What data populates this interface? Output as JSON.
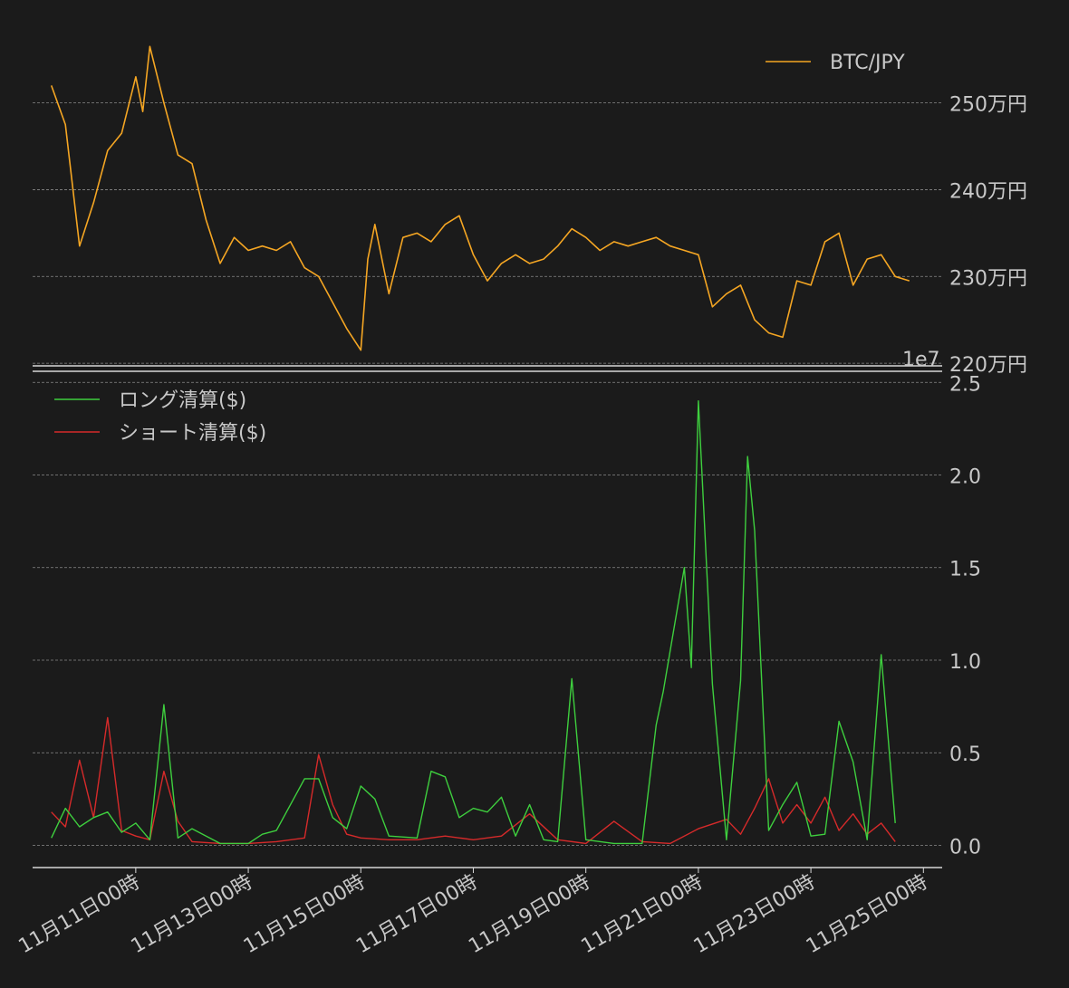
{
  "chart_data": [
    {
      "type": "line",
      "series": [
        {
          "name": "BTC/JPY",
          "color": "#f5a623",
          "points": [
            [
              "2024-11-09T12:00",
              2520000
            ],
            [
              "2024-11-09T18:00",
              2475000
            ],
            [
              "2024-11-10T00:00",
              2335000
            ],
            [
              "2024-11-10T06:00",
              2385000
            ],
            [
              "2024-11-10T12:00",
              2445000
            ],
            [
              "2024-11-10T18:00",
              2465000
            ],
            [
              "2024-11-11T00:00",
              2530000
            ],
            [
              "2024-11-11T03:00",
              2490000
            ],
            [
              "2024-11-11T06:00",
              2565000
            ],
            [
              "2024-11-11T12:00",
              2500000
            ],
            [
              "2024-11-11T18:00",
              2440000
            ],
            [
              "2024-11-12T00:00",
              2430000
            ],
            [
              "2024-11-12T06:00",
              2365000
            ],
            [
              "2024-11-12T12:00",
              2315000
            ],
            [
              "2024-11-12T18:00",
              2345000
            ],
            [
              "2024-11-13T00:00",
              2330000
            ],
            [
              "2024-11-13T06:00",
              2335000
            ],
            [
              "2024-11-13T12:00",
              2330000
            ],
            [
              "2024-11-13T18:00",
              2340000
            ],
            [
              "2024-11-14T00:00",
              2310000
            ],
            [
              "2024-11-14T06:00",
              2300000
            ],
            [
              "2024-11-14T12:00",
              2270000
            ],
            [
              "2024-11-14T18:00",
              2240000
            ],
            [
              "2024-11-15T00:00",
              2215000
            ],
            [
              "2024-11-15T03:00",
              2320000
            ],
            [
              "2024-11-15T06:00",
              2360000
            ],
            [
              "2024-11-15T12:00",
              2280000
            ],
            [
              "2024-11-15T18:00",
              2345000
            ],
            [
              "2024-11-16T00:00",
              2350000
            ],
            [
              "2024-11-16T06:00",
              2340000
            ],
            [
              "2024-11-16T12:00",
              2360000
            ],
            [
              "2024-11-16T18:00",
              2370000
            ],
            [
              "2024-11-17T00:00",
              2325000
            ],
            [
              "2024-11-17T06:00",
              2295000
            ],
            [
              "2024-11-17T12:00",
              2315000
            ],
            [
              "2024-11-17T18:00",
              2325000
            ],
            [
              "2024-11-18T00:00",
              2315000
            ],
            [
              "2024-11-18T06:00",
              2320000
            ],
            [
              "2024-11-18T12:00",
              2335000
            ],
            [
              "2024-11-18T18:00",
              2355000
            ],
            [
              "2024-11-19T00:00",
              2345000
            ],
            [
              "2024-11-19T06:00",
              2330000
            ],
            [
              "2024-11-19T12:00",
              2340000
            ],
            [
              "2024-11-19T18:00",
              2335000
            ],
            [
              "2024-11-20T00:00",
              2340000
            ],
            [
              "2024-11-20T06:00",
              2345000
            ],
            [
              "2024-11-20T12:00",
              2335000
            ],
            [
              "2024-11-20T18:00",
              2330000
            ],
            [
              "2024-11-21T00:00",
              2325000
            ],
            [
              "2024-11-21T06:00",
              2265000
            ],
            [
              "2024-11-21T12:00",
              2280000
            ],
            [
              "2024-11-21T18:00",
              2290000
            ],
            [
              "2024-11-22T00:00",
              2250000
            ],
            [
              "2024-11-22T06:00",
              2235000
            ],
            [
              "2024-11-22T12:00",
              2230000
            ],
            [
              "2024-11-22T18:00",
              2295000
            ],
            [
              "2024-11-23T00:00",
              2290000
            ],
            [
              "2024-11-23T06:00",
              2340000
            ],
            [
              "2024-11-23T12:00",
              2350000
            ],
            [
              "2024-11-23T18:00",
              2290000
            ],
            [
              "2024-11-24T00:00",
              2320000
            ],
            [
              "2024-11-24T06:00",
              2325000
            ],
            [
              "2024-11-24T12:00",
              2300000
            ],
            [
              "2024-11-24T18:00",
              2295000
            ]
          ]
        }
      ],
      "ylim": [
        2197000,
        2582000
      ],
      "yticks": [
        2200000,
        2300000,
        2400000,
        2500000
      ],
      "ytick_labels": [
        "220万円",
        "230万円",
        "240万円",
        "250万円"
      ],
      "grid": true,
      "legend": "top-right"
    },
    {
      "type": "line",
      "y_offset_label": "1e7",
      "series": [
        {
          "name": "ロング清算($)",
          "color": "#3ecf3e",
          "points": [
            [
              "2024-11-09T12:00",
              400000
            ],
            [
              "2024-11-09T18:00",
              2000000
            ],
            [
              "2024-11-10T00:00",
              1000000
            ],
            [
              "2024-11-10T06:00",
              1500000
            ],
            [
              "2024-11-10T12:00",
              1800000
            ],
            [
              "2024-11-10T18:00",
              700000
            ],
            [
              "2024-11-11T00:00",
              1200000
            ],
            [
              "2024-11-11T06:00",
              300000
            ],
            [
              "2024-11-11T12:00",
              7600000
            ],
            [
              "2024-11-11T18:00",
              400000
            ],
            [
              "2024-11-12T00:00",
              900000
            ],
            [
              "2024-11-12T12:00",
              100000
            ],
            [
              "2024-11-13T00:00",
              100000
            ],
            [
              "2024-11-13T06:00",
              600000
            ],
            [
              "2024-11-13T12:00",
              800000
            ],
            [
              "2024-11-14T00:00",
              3600000
            ],
            [
              "2024-11-14T06:00",
              3600000
            ],
            [
              "2024-11-14T12:00",
              1500000
            ],
            [
              "2024-11-14T18:00",
              900000
            ],
            [
              "2024-11-15T00:00",
              3200000
            ],
            [
              "2024-11-15T06:00",
              2500000
            ],
            [
              "2024-11-15T12:00",
              500000
            ],
            [
              "2024-11-16T00:00",
              400000
            ],
            [
              "2024-11-16T06:00",
              4000000
            ],
            [
              "2024-11-16T12:00",
              3700000
            ],
            [
              "2024-11-16T18:00",
              1500000
            ],
            [
              "2024-11-17T00:00",
              2000000
            ],
            [
              "2024-11-17T06:00",
              1800000
            ],
            [
              "2024-11-17T12:00",
              2600000
            ],
            [
              "2024-11-17T18:00",
              500000
            ],
            [
              "2024-11-18T00:00",
              2200000
            ],
            [
              "2024-11-18T06:00",
              300000
            ],
            [
              "2024-11-18T12:00",
              200000
            ],
            [
              "2024-11-18T18:00",
              9000000
            ],
            [
              "2024-11-19T00:00",
              300000
            ],
            [
              "2024-11-19T12:00",
              100000
            ],
            [
              "2024-11-20T00:00",
              100000
            ],
            [
              "2024-11-20T06:00",
              6500000
            ],
            [
              "2024-11-20T09:00",
              8300000
            ],
            [
              "2024-11-20T18:00",
              15000000
            ],
            [
              "2024-11-20T21:00",
              9600000
            ],
            [
              "2024-11-21T00:00",
              24000000
            ],
            [
              "2024-11-21T06:00",
              8700000
            ],
            [
              "2024-11-21T12:00",
              300000
            ],
            [
              "2024-11-21T18:00",
              8900000
            ],
            [
              "2024-11-21T21:00",
              21000000
            ],
            [
              "2024-11-22T00:00",
              17000000
            ],
            [
              "2024-11-22T06:00",
              800000
            ],
            [
              "2024-11-22T12:00",
              2200000
            ],
            [
              "2024-11-22T18:00",
              3400000
            ],
            [
              "2024-11-23T00:00",
              500000
            ],
            [
              "2024-11-23T06:00",
              600000
            ],
            [
              "2024-11-23T12:00",
              6700000
            ],
            [
              "2024-11-23T18:00",
              4500000
            ],
            [
              "2024-11-24T00:00",
              300000
            ],
            [
              "2024-11-24T06:00",
              10300000
            ],
            [
              "2024-11-24T12:00",
              1200000
            ]
          ]
        },
        {
          "name": "ショート清算($)",
          "color": "#d62a2a",
          "points": [
            [
              "2024-11-09T12:00",
              1800000
            ],
            [
              "2024-11-09T18:00",
              1000000
            ],
            [
              "2024-11-10T00:00",
              4600000
            ],
            [
              "2024-11-10T06:00",
              1500000
            ],
            [
              "2024-11-10T12:00",
              6900000
            ],
            [
              "2024-11-10T18:00",
              800000
            ],
            [
              "2024-11-11T00:00",
              500000
            ],
            [
              "2024-11-11T06:00",
              300000
            ],
            [
              "2024-11-11T12:00",
              4000000
            ],
            [
              "2024-11-11T18:00",
              1300000
            ],
            [
              "2024-11-12T00:00",
              200000
            ],
            [
              "2024-11-12T12:00",
              100000
            ],
            [
              "2024-11-13T00:00",
              100000
            ],
            [
              "2024-11-13T12:00",
              200000
            ],
            [
              "2024-11-14T00:00",
              400000
            ],
            [
              "2024-11-14T06:00",
              4900000
            ],
            [
              "2024-11-14T12:00",
              2200000
            ],
            [
              "2024-11-14T18:00",
              600000
            ],
            [
              "2024-11-15T00:00",
              400000
            ],
            [
              "2024-11-15T12:00",
              300000
            ],
            [
              "2024-11-16T00:00",
              300000
            ],
            [
              "2024-11-16T12:00",
              500000
            ],
            [
              "2024-11-17T00:00",
              300000
            ],
            [
              "2024-11-17T12:00",
              500000
            ],
            [
              "2024-11-18T00:00",
              1700000
            ],
            [
              "2024-11-18T12:00",
              300000
            ],
            [
              "2024-11-19T00:00",
              100000
            ],
            [
              "2024-11-19T12:00",
              1300000
            ],
            [
              "2024-11-20T00:00",
              200000
            ],
            [
              "2024-11-20T12:00",
              100000
            ],
            [
              "2024-11-21T00:00",
              900000
            ],
            [
              "2024-11-21T12:00",
              1400000
            ],
            [
              "2024-11-21T18:00",
              600000
            ],
            [
              "2024-11-22T00:00",
              2000000
            ],
            [
              "2024-11-22T06:00",
              3600000
            ],
            [
              "2024-11-22T12:00",
              1200000
            ],
            [
              "2024-11-22T18:00",
              2200000
            ],
            [
              "2024-11-23T00:00",
              1200000
            ],
            [
              "2024-11-23T06:00",
              2600000
            ],
            [
              "2024-11-23T12:00",
              800000
            ],
            [
              "2024-11-23T18:00",
              1700000
            ],
            [
              "2024-11-24T00:00",
              600000
            ],
            [
              "2024-11-24T06:00",
              1200000
            ],
            [
              "2024-11-24T12:00",
              200000
            ]
          ]
        }
      ],
      "ylim": [
        -1200000,
        25600000
      ],
      "yticks": [
        0,
        5000000,
        10000000,
        15000000,
        20000000,
        25000000
      ],
      "ytick_labels": [
        "0.0",
        "0.5",
        "1.0",
        "1.5",
        "2.0",
        "2.5"
      ],
      "xlim": [
        "2024-11-09T04:00",
        "2024-11-25T08:00"
      ],
      "xticks": [
        "2024-11-11T00:00",
        "2024-11-13T00:00",
        "2024-11-15T00:00",
        "2024-11-17T00:00",
        "2024-11-19T00:00",
        "2024-11-21T00:00",
        "2024-11-23T00:00",
        "2024-11-25T00:00"
      ],
      "xtick_labels": [
        "11月11日00時",
        "11月13日00時",
        "11月15日00時",
        "11月17日00時",
        "11月19日00時",
        "11月21日00時",
        "11月23日00時",
        "11月25日00時"
      ],
      "grid": true,
      "legend": "top-left"
    }
  ]
}
